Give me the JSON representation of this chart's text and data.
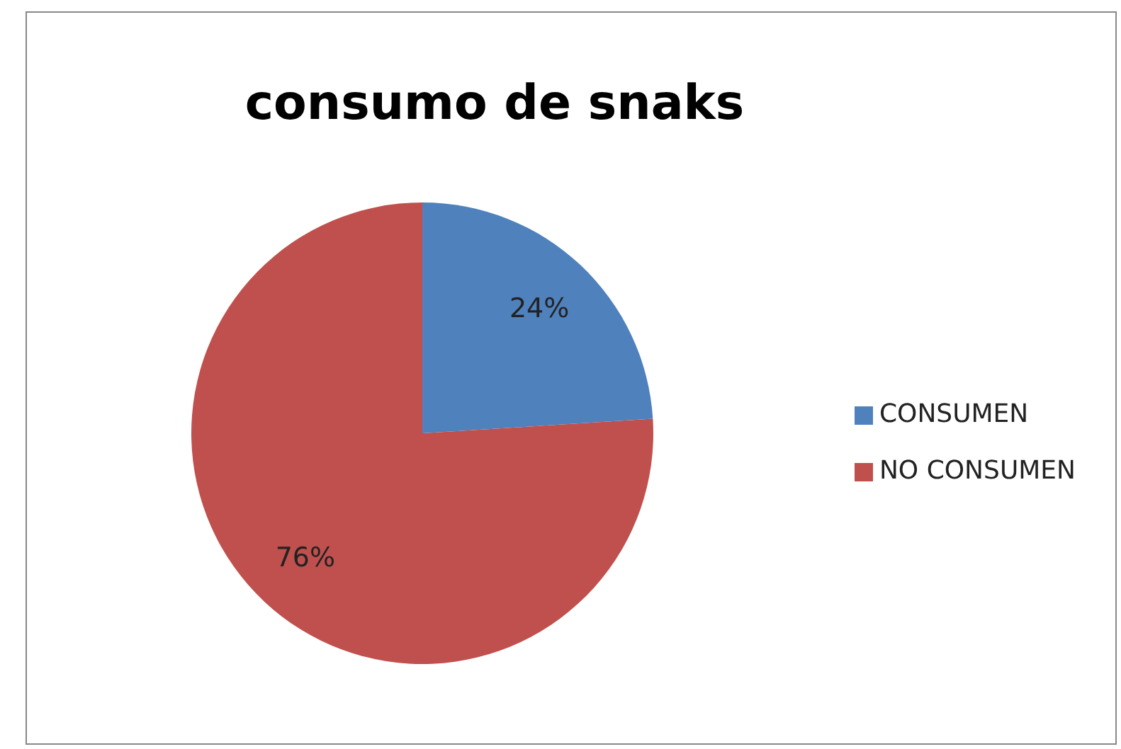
{
  "chart_data": {
    "type": "pie",
    "title": "consumo de snaks",
    "categories": [
      "CONSUMEN",
      "NO CONSUMEN"
    ],
    "values": [
      24,
      76
    ],
    "colors": [
      "#4f81bd",
      "#c0504d"
    ],
    "value_labels": [
      "24%",
      "76%"
    ],
    "legend": "right"
  }
}
